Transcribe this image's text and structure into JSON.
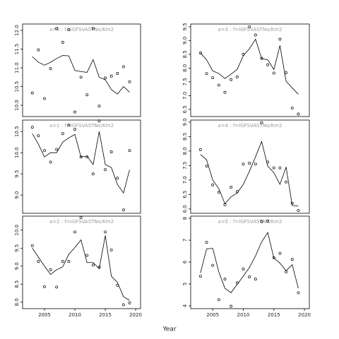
{
  "xlabel": "Year",
  "chart_data": [
    {
      "type": "line",
      "title": "a=0 : f=IGFSVASTNo/Km2",
      "x": [
        2003,
        2004,
        2005,
        2006,
        2007,
        2008,
        2009,
        2010,
        2011,
        2012,
        2013,
        2014,
        2015,
        2016,
        2017,
        2018,
        2019
      ],
      "series": [
        {
          "style": "points",
          "color": "#000000",
          "values": [
            10.33,
            11.48,
            10.18,
            10.98,
            12.05,
            11.68,
            12.02,
            9.82,
            10.75,
            10.28,
            12.05,
            9.98,
            10.73,
            10.78,
            10.85,
            11.03,
            10.63
          ]
        },
        {
          "style": "line",
          "color": "#000000",
          "values": [
            11.3,
            11.15,
            11.07,
            11.15,
            11.25,
            11.33,
            11.32,
            10.93,
            10.9,
            10.88,
            11.22,
            10.75,
            10.68,
            10.42,
            10.3,
            10.5,
            10.35
          ]
        }
      ],
      "xlim": [
        2001.4,
        2020.8
      ],
      "ylim": [
        9.7,
        12.17
      ],
      "yticks": [
        {
          "value": 10,
          "label": "10.0"
        },
        {
          "value": 10.5,
          "label": "10.5"
        },
        {
          "value": 11,
          "label": "11.0"
        },
        {
          "value": 11.5,
          "label": "11.5"
        },
        {
          "value": 12,
          "label": "12.0"
        }
      ]
    },
    {
      "type": "line",
      "title": "a=3 : f=IGFSVASTNo/Km2",
      "x": [
        2003,
        2004,
        2005,
        2006,
        2007,
        2008,
        2009,
        2010,
        2011,
        2012,
        2013,
        2014,
        2015,
        2016,
        2017,
        2018,
        2019
      ],
      "series": [
        {
          "style": "points",
          "color": "#000000",
          "values": [
            8.55,
            7.8,
            7.65,
            7.38,
            7.12,
            7.58,
            7.68,
            8.5,
            9.5,
            9.2,
            8.35,
            8.12,
            7.82,
            9.05,
            7.83,
            6.55,
            6.33
          ]
        },
        {
          "style": "line",
          "color": "#000000",
          "values": [
            8.55,
            8.3,
            7.9,
            7.8,
            7.62,
            7.78,
            7.95,
            8.45,
            8.7,
            9.05,
            8.35,
            8.3,
            7.95,
            8.82,
            7.52,
            7.28,
            7.05
          ]
        }
      ],
      "xlim": [
        2001.4,
        2020.8
      ],
      "ylim": [
        6.24,
        9.6
      ],
      "yticks": [
        {
          "value": 6.5,
          "label": "6.5"
        },
        {
          "value": 7,
          "label": "7.0"
        },
        {
          "value": 7.5,
          "label": "7.5"
        },
        {
          "value": 8,
          "label": "8.0"
        },
        {
          "value": 8.5,
          "label": "8.5"
        },
        {
          "value": 9,
          "label": "9.0"
        },
        {
          "value": 9.5,
          "label": "9.5"
        }
      ]
    },
    {
      "type": "line",
      "title": "a=1 : f=IGFSVASTNo/Km2",
      "x": [
        2003,
        2004,
        2005,
        2006,
        2007,
        2008,
        2009,
        2010,
        2011,
        2012,
        2013,
        2014,
        2015,
        2016,
        2017,
        2018,
        2019
      ],
      "series": [
        {
          "style": "points",
          "color": "#000000",
          "values": [
            10.6,
            10.4,
            10.05,
            9.78,
            10.08,
            10.45,
            10.65,
            10.55,
            9.9,
            9.9,
            9.5,
            10.75,
            9.6,
            10.02,
            9.4,
            8.65,
            10.05
          ]
        },
        {
          "style": "line",
          "color": "#000000",
          "values": [
            10.45,
            10.2,
            9.9,
            10.0,
            10.0,
            10.25,
            10.35,
            10.43,
            9.9,
            9.92,
            9.72,
            10.5,
            9.72,
            9.65,
            9.25,
            9.05,
            9.6
          ]
        }
      ],
      "xlim": [
        2001.4,
        2020.8
      ],
      "ylim": [
        8.57,
        10.77
      ],
      "yticks": [
        {
          "value": 9,
          "label": "9.0"
        },
        {
          "value": 9.5,
          "label": "9.5"
        },
        {
          "value": 10,
          "label": "10.0"
        },
        {
          "value": 10.5,
          "label": "10.5"
        }
      ]
    },
    {
      "type": "line",
      "title": "a=4 : f=IGFSVASTNo/Km2",
      "x": [
        2003,
        2004,
        2005,
        2006,
        2007,
        2008,
        2009,
        2010,
        2011,
        2012,
        2013,
        2014,
        2015,
        2016,
        2017,
        2018,
        2019
      ],
      "series": [
        {
          "style": "points",
          "color": "#000000",
          "values": [
            8.05,
            7.48,
            6.83,
            6.58,
            6.15,
            6.75,
            6.6,
            7.55,
            7.58,
            7.55,
            8.98,
            7.62,
            7.42,
            7.42,
            6.93,
            6.2,
            5.95
          ]
        },
        {
          "style": "line",
          "color": "#000000",
          "values": [
            7.88,
            7.7,
            7.0,
            6.7,
            6.18,
            6.42,
            6.55,
            6.85,
            7.3,
            7.8,
            8.33,
            7.48,
            7.25,
            6.85,
            7.45,
            6.12,
            6.1
          ]
        }
      ],
      "xlim": [
        2001.4,
        2020.8
      ],
      "ylim": [
        5.85,
        9.07
      ],
      "yticks": [
        {
          "value": 6,
          "label": "6.0"
        },
        {
          "value": 6.5,
          "label": "6.5"
        },
        {
          "value": 7,
          "label": "7.0"
        },
        {
          "value": 7.5,
          "label": "7.5"
        },
        {
          "value": 8,
          "label": "8.0"
        },
        {
          "value": 8.5,
          "label": "8.5"
        },
        {
          "value": 9,
          "label": "9.0"
        }
      ]
    },
    {
      "type": "line",
      "title": "a=2 : f=IGFSVASTNo/Km2",
      "x": [
        2003,
        2004,
        2005,
        2006,
        2007,
        2008,
        2009,
        2010,
        2011,
        2012,
        2013,
        2014,
        2015,
        2016,
        2017,
        2018,
        2019
      ],
      "series": [
        {
          "style": "points",
          "color": "#000000",
          "values": [
            9.57,
            9.13,
            8.43,
            8.9,
            8.42,
            9.13,
            9.13,
            9.95,
            10.35,
            9.3,
            9.03,
            8.97,
            9.95,
            9.45,
            8.47,
            7.93,
            7.98
          ]
        },
        {
          "style": "line",
          "color": "#000000",
          "values": [
            9.5,
            9.25,
            9.0,
            8.77,
            8.9,
            8.98,
            9.33,
            9.52,
            9.73,
            9.1,
            9.1,
            8.93,
            9.85,
            8.72,
            8.55,
            8.15,
            8.05
          ]
        }
      ],
      "xlim": [
        2001.4,
        2020.8
      ],
      "ylim": [
        7.82,
        10.39
      ],
      "xticks": [
        2005,
        2010,
        2015,
        2020
      ],
      "yticks": [
        {
          "value": 8,
          "label": "8.0"
        },
        {
          "value": 8.5,
          "label": "8.5"
        },
        {
          "value": 9,
          "label": "9.0"
        },
        {
          "value": 9.5,
          "label": "9.5"
        },
        {
          "value": 10,
          "label": "10.0"
        }
      ]
    },
    {
      "type": "line",
      "title": "a=5 : f=IGFSVASTNo/Km2",
      "x": [
        2003,
        2004,
        2005,
        2006,
        2007,
        2008,
        2009,
        2010,
        2011,
        2012,
        2013,
        2014,
        2015,
        2016,
        2017,
        2018,
        2019
      ],
      "series": [
        {
          "style": "points",
          "color": "#000000",
          "values": [
            5.35,
            6.9,
            5.85,
            4.28,
            5.22,
            3.98,
            5.05,
            5.68,
            5.32,
            5.22,
            7.85,
            7.88,
            6.2,
            6.4,
            5.55,
            6.12,
            4.6
          ]
        },
        {
          "style": "line",
          "color": "#000000",
          "values": [
            5.5,
            6.6,
            6.63,
            5.55,
            4.8,
            4.6,
            4.98,
            5.35,
            5.75,
            6.28,
            6.92,
            7.35,
            6.18,
            5.95,
            5.6,
            5.88,
            4.8
          ]
        }
      ],
      "xlim": [
        2001.4,
        2020.8
      ],
      "ylim": [
        3.87,
        8.1
      ],
      "xticks": [
        2005,
        2010,
        2015,
        2020
      ],
      "yticks": [
        4,
        5,
        6,
        7,
        8
      ]
    }
  ]
}
